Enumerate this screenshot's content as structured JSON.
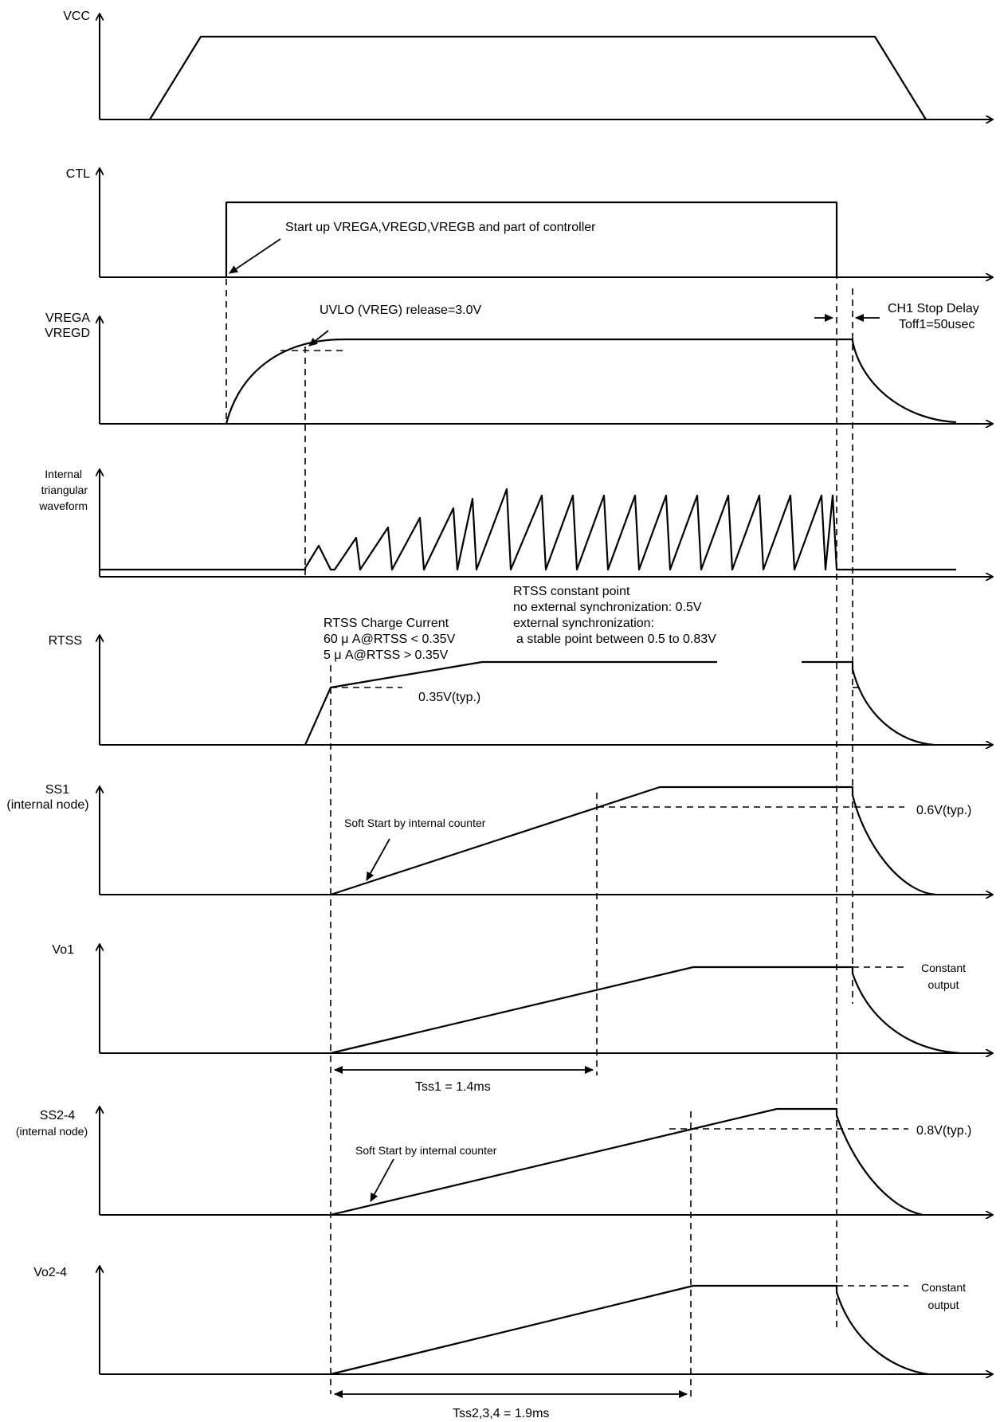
{
  "signals": {
    "vcc": "VCC",
    "ctl": "CTL",
    "vrega": "VREGA",
    "vregd": "VREGD",
    "tri1": "Internal",
    "tri2": "triangular",
    "tri3": "waveform",
    "rtss": "RTSS",
    "ss1": "SS1",
    "ss1_sub": "(internal node)",
    "vo1": "Vo1",
    "ss24": "SS2-4",
    "ss24_sub": "(internal node)",
    "vo24": "Vo2-4"
  },
  "annotations": {
    "startup": "Start up VREGA,VREGD,VREGB and part of controller",
    "uvlo": "UVLO (VREG) release=3.0V",
    "ch1_stop": "CH1 Stop Delay",
    "toff1": "Toff1=50usec",
    "rtss_const": "RTSS constant point",
    "no_ext_sync": "no external synchronization: 0.5V",
    "ext_sync": "external synchronization:",
    "stable_point": "a stable point between 0.5 to 0.83V",
    "rtss_charge": "RTSS Charge Current",
    "charge_60": "60 μ A@RTSS < 0.35V",
    "charge_5": "5 μ A@RTSS > 0.35V",
    "v035": "0.35V(typ.)",
    "soft_start1": "Soft Start by internal counter",
    "v06": "0.6V(typ.)",
    "constant1": "Constant",
    "output1": "output",
    "tss1": "Tss1 = 1.4ms",
    "soft_start2": "Soft Start by internal counter",
    "v08": "0.8V(typ.)",
    "constant2": "Constant",
    "output2": "output",
    "tss234": "Tss2,3,4 = 1.9ms"
  }
}
